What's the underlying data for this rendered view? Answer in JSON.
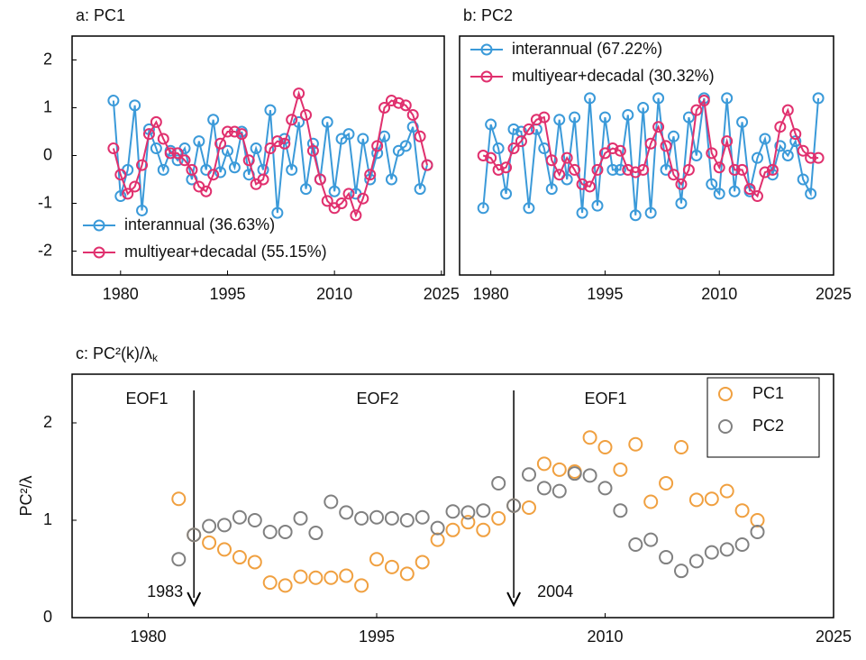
{
  "chart_data": [
    {
      "type": "line",
      "title": "a: PC1",
      "x": [
        1979,
        1980,
        1981,
        1982,
        1983,
        1984,
        1985,
        1986,
        1987,
        1988,
        1989,
        1990,
        1991,
        1992,
        1993,
        1994,
        1995,
        1996,
        1997,
        1998,
        1999,
        2000,
        2001,
        2002,
        2003,
        2004,
        2005,
        2006,
        2007,
        2008,
        2009,
        2010,
        2011,
        2012,
        2013,
        2014,
        2015,
        2016,
        2017,
        2018,
        2019,
        2020,
        2021,
        2022,
        2023
      ],
      "series": [
        {
          "name": "interannual (36.63%)",
          "color": "#3b9ad9",
          "values": [
            1.15,
            -0.85,
            -0.3,
            1.05,
            -1.15,
            0.55,
            0.15,
            -0.3,
            0.1,
            -0.1,
            0.15,
            -0.5,
            0.3,
            -0.3,
            0.75,
            -0.35,
            0.1,
            -0.25,
            0.5,
            -0.4,
            0.15,
            -0.3,
            0.95,
            -1.2,
            0.35,
            -0.3,
            0.7,
            -0.7,
            0.25,
            -0.5,
            0.7,
            -0.75,
            0.35,
            0.45,
            -0.8,
            0.35,
            -0.5,
            0.05,
            0.4,
            -0.5,
            0.1,
            0.2,
            0.6,
            -0.7,
            -0.2
          ]
        },
        {
          "name": "multiyear+decadal (55.15%)",
          "color": "#e0306e",
          "values": [
            0.15,
            -0.4,
            -0.8,
            -0.65,
            -0.2,
            0.45,
            0.7,
            0.35,
            0.05,
            0.05,
            -0.1,
            -0.3,
            -0.65,
            -0.75,
            -0.4,
            0.25,
            0.5,
            0.5,
            0.45,
            -0.1,
            -0.6,
            -0.5,
            0.15,
            0.3,
            0.25,
            0.75,
            1.3,
            0.85,
            0.1,
            -0.5,
            -0.95,
            -1.1,
            -1.0,
            -0.8,
            -1.25,
            -0.9,
            -0.4,
            0.2,
            1.0,
            1.15,
            1.1,
            1.05,
            0.85,
            0.4,
            -0.2
          ]
        }
      ],
      "xlim": [
        1973.2,
        2025.4
      ],
      "xticks": [
        1980,
        1995,
        2010,
        2025
      ],
      "ylim": [
        -2.5,
        2.5
      ],
      "yticks": [
        -2,
        -1,
        0,
        1,
        2
      ],
      "legend": "lower left"
    },
    {
      "type": "line",
      "title": "b: PC2",
      "x": [
        1979,
        1980,
        1981,
        1982,
        1983,
        1984,
        1985,
        1986,
        1987,
        1988,
        1989,
        1990,
        1991,
        1992,
        1993,
        1994,
        1995,
        1996,
        1997,
        1998,
        1999,
        2000,
        2001,
        2002,
        2003,
        2004,
        2005,
        2006,
        2007,
        2008,
        2009,
        2010,
        2011,
        2012,
        2013,
        2014,
        2015,
        2016,
        2017,
        2018,
        2019,
        2020,
        2021,
        2022,
        2023
      ],
      "series": [
        {
          "name": "interannual (67.22%)",
          "color": "#3b9ad9",
          "values": [
            -1.1,
            0.65,
            0.15,
            -0.8,
            0.55,
            0.5,
            -1.1,
            0.55,
            0.15,
            -0.7,
            0.75,
            -0.5,
            0.8,
            -1.2,
            1.2,
            -1.05,
            0.8,
            -0.3,
            -0.3,
            0.85,
            -1.25,
            1.0,
            -1.2,
            1.2,
            -0.3,
            0.4,
            -1.0,
            0.8,
            0.0,
            1.2,
            -0.6,
            -0.8,
            1.2,
            -0.75,
            0.7,
            -0.75,
            -0.05,
            0.35,
            -0.4,
            0.2,
            0.0,
            0.3,
            -0.5,
            -0.8,
            1.2
          ]
        },
        {
          "name": "multiyear+decadal (30.32%)",
          "color": "#e0306e",
          "values": [
            0,
            -0.05,
            -0.3,
            -0.25,
            0.15,
            0.3,
            0.55,
            0.75,
            0.8,
            -0.1,
            -0.4,
            -0.05,
            -0.3,
            -0.6,
            -0.65,
            -0.3,
            0.05,
            0.15,
            0.1,
            -0.3,
            -0.35,
            -0.3,
            0.25,
            0.6,
            0.2,
            -0.4,
            -0.6,
            -0.3,
            0.95,
            1.15,
            0.05,
            -0.25,
            0.3,
            -0.3,
            -0.3,
            -0.7,
            -0.85,
            -0.35,
            -0.3,
            0.6,
            0.95,
            0.45,
            0.1,
            -0.05,
            -0.05
          ]
        }
      ],
      "xlim": [
        1975.9,
        2025
      ],
      "xticks": [
        1980,
        1995,
        2010,
        2025
      ],
      "ylim": [
        -2.5,
        2.5
      ],
      "legend": "upper left"
    },
    {
      "type": "scatter",
      "title": "c: PC²(k)/λ",
      "title_subscript": "k",
      "ylabel": "PC²/λ",
      "x": [
        1982,
        1983,
        1984,
        1985,
        1986,
        1987,
        1988,
        1989,
        1990,
        1991,
        1992,
        1993,
        1994,
        1995,
        1996,
        1997,
        1998,
        1999,
        2000,
        2001,
        2002,
        2003,
        2004,
        2005,
        2006,
        2007,
        2008,
        2009,
        2010,
        2011,
        2012,
        2013,
        2014,
        2015,
        2016,
        2017,
        2018,
        2019,
        2020
      ],
      "series": [
        {
          "name": "PC1",
          "color": "#f0a040",
          "values": [
            1.22,
            0.85,
            0.77,
            0.7,
            0.62,
            0.57,
            0.36,
            0.33,
            0.42,
            0.41,
            0.41,
            0.43,
            0.33,
            0.6,
            0.52,
            0.45,
            0.57,
            0.8,
            0.9,
            0.98,
            0.9,
            1.02,
            1.15,
            1.13,
            1.58,
            1.52,
            1.5,
            1.85,
            1.75,
            1.52,
            1.78,
            1.19,
            1.38,
            1.75,
            1.21,
            1.22,
            1.3,
            1.1,
            1.0
          ]
        },
        {
          "name": "PC2",
          "color": "#808080",
          "values": [
            0.6,
            0.85,
            0.94,
            0.95,
            1.03,
            1.0,
            0.88,
            0.88,
            1.02,
            0.87,
            1.19,
            1.08,
            1.02,
            1.03,
            1.02,
            1.0,
            1.03,
            0.92,
            1.09,
            1.08,
            1.1,
            1.38,
            1.15,
            1.47,
            1.33,
            1.3,
            1.48,
            1.46,
            1.33,
            1.1,
            0.75,
            0.8,
            0.62,
            0.48,
            0.58,
            0.67,
            0.7,
            0.75,
            0.88
          ]
        }
      ],
      "regions": [
        "EOF1",
        "EOF2",
        "EOF1"
      ],
      "arrows": [
        1983,
        2004
      ],
      "xlim": [
        1975,
        2025
      ],
      "xticks": [
        1980,
        1995,
        2010,
        2025
      ],
      "ylim": [
        0,
        2.5
      ],
      "yticks": [
        0,
        1,
        2
      ],
      "legend": "upper right"
    }
  ]
}
